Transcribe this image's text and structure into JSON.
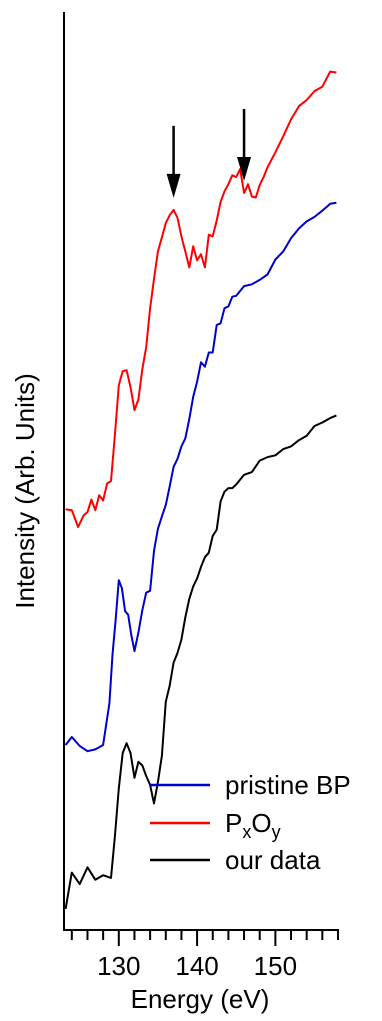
{
  "chart_data": {
    "type": "line",
    "xlabel": "Energy (eV)",
    "ylabel": "Intensity (Arb. Units)",
    "xlim": [
      123,
      158
    ],
    "ylim": [
      0,
      100
    ],
    "x_ticks": [
      130,
      140,
      150
    ],
    "y_ticks_shown": false,
    "grid": false,
    "legend_position": "bottom-right",
    "series": [
      {
        "name": "pristine BP",
        "color": "#0000cc",
        "x": [
          123.2,
          124.0,
          125.0,
          126.0,
          127.0,
          128.0,
          128.8,
          129.2,
          129.6,
          130.0,
          130.4,
          130.8,
          131.2,
          131.6,
          132.0,
          132.5,
          133.0,
          133.5,
          134.0,
          134.5,
          135.0,
          135.5,
          136.0,
          136.5,
          137.0,
          137.5,
          138.0,
          138.5,
          139.0,
          139.5,
          140.0,
          140.5,
          141.0,
          141.5,
          142.0,
          142.5,
          143.0,
          143.5,
          144.0,
          144.5,
          145.0,
          146.0,
          147.0,
          148.0,
          149.0,
          150.0,
          151.0,
          152.0,
          153.0,
          154.0,
          155.0,
          156.0,
          157.0,
          157.8
        ],
        "y": [
          19.3,
          20.2,
          19.2,
          18.6,
          18.8,
          19.3,
          24.0,
          29.5,
          33.5,
          37.9,
          37.0,
          34.4,
          34.0,
          31.7,
          29.9,
          32.0,
          34.5,
          36.5,
          36.7,
          41.2,
          43.7,
          45.1,
          46.4,
          48.5,
          50.7,
          51.6,
          53.0,
          53.9,
          56.1,
          58.6,
          60.3,
          62.5,
          62.0,
          63.6,
          63.6,
          66.7,
          66.9,
          68.6,
          68.8,
          69.9,
          70.0,
          71.1,
          71.3,
          71.8,
          72.4,
          74.1,
          75.0,
          76.5,
          77.6,
          78.4,
          78.9,
          79.6,
          80.4,
          80.5
        ]
      },
      {
        "name": "PxOy",
        "label_parts": {
          "base1": "P",
          "sub1": "x",
          "base2": "O",
          "sub2": "y"
        },
        "color": "#ff0000",
        "x": [
          123.2,
          124.0,
          124.8,
          125.5,
          126.0,
          126.5,
          127.0,
          127.5,
          128.0,
          128.5,
          129.0,
          129.5,
          130.0,
          130.5,
          131.0,
          131.5,
          132.0,
          132.5,
          133.0,
          133.5,
          134.0,
          134.5,
          135.0,
          135.5,
          136.0,
          136.5,
          137.0,
          137.5,
          138.0,
          138.5,
          139.0,
          139.5,
          140.0,
          140.5,
          141.0,
          141.5,
          142.0,
          142.5,
          143.0,
          143.5,
          144.0,
          144.5,
          145.0,
          145.5,
          146.0,
          146.5,
          147.0,
          147.5,
          148.0,
          148.5,
          149.0,
          150.0,
          151.0,
          152.0,
          153.0,
          154.0,
          155.0,
          156.0,
          157.0,
          157.8
        ],
        "y": [
          45.9,
          45.8,
          43.9,
          45.2,
          45.6,
          47.0,
          45.8,
          47.5,
          46.9,
          48.8,
          49.1,
          54.3,
          59.9,
          61.5,
          61.6,
          59.7,
          57.1,
          58.3,
          61.7,
          64.2,
          68.6,
          71.9,
          75.0,
          76.6,
          78.2,
          79.1,
          79.7,
          78.8,
          76.7,
          75.0,
          73.2,
          75.6,
          74.0,
          74.7,
          73.2,
          76.9,
          76.7,
          78.5,
          80.6,
          81.8,
          82.6,
          83.6,
          83.4,
          84.3,
          81.6,
          82.6,
          81.2,
          81.1,
          82.5,
          83.4,
          84.5,
          86.2,
          88.0,
          89.9,
          91.4,
          92.1,
          93.1,
          93.6,
          95.3,
          95.2
        ]
      },
      {
        "name": "our data",
        "color": "#000000",
        "x": [
          123.2,
          124.0,
          125.0,
          126.0,
          127.0,
          128.0,
          129.0,
          129.5,
          130.0,
          130.5,
          131.0,
          131.5,
          132.0,
          132.5,
          133.0,
          133.5,
          134.0,
          134.5,
          135.0,
          135.5,
          136.0,
          136.5,
          137.0,
          137.5,
          138.0,
          138.5,
          139.0,
          139.5,
          140.0,
          140.5,
          141.0,
          141.5,
          142.0,
          142.5,
          143.0,
          143.5,
          144.0,
          144.5,
          145.0,
          146.0,
          147.0,
          148.0,
          149.0,
          150.0,
          151.0,
          152.0,
          153.0,
          154.0,
          155.0,
          156.0,
          157.0,
          157.8
        ],
        "y": [
          0.8,
          4.9,
          3.6,
          5.5,
          4.1,
          4.6,
          4.3,
          9.0,
          14.4,
          18.4,
          19.5,
          18.4,
          15.6,
          17.4,
          17.0,
          15.8,
          14.8,
          12.7,
          15.1,
          18.1,
          24.2,
          26.0,
          28.6,
          29.7,
          31.2,
          33.7,
          35.8,
          37.2,
          38.1,
          39.4,
          40.5,
          41.0,
          42.9,
          43.6,
          46.8,
          47.9,
          48.3,
          48.3,
          48.7,
          49.8,
          50.1,
          51.4,
          51.8,
          52.0,
          52.7,
          53.0,
          53.7,
          54.2,
          55.3,
          55.7,
          56.2,
          56.5
        ]
      }
    ],
    "annotations": [
      {
        "type": "arrow-down",
        "x": 137,
        "series": "PxOy"
      },
      {
        "type": "arrow-down",
        "x": 146,
        "series": "PxOy"
      }
    ]
  }
}
